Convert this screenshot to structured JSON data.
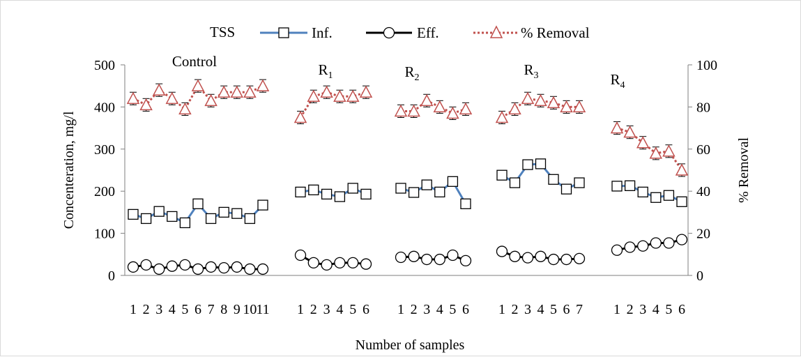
{
  "chart_data": {
    "type": "line",
    "legend": {
      "title": "TSS",
      "placement": "top",
      "entries": [
        {
          "label": "Inf.",
          "marker": "square",
          "color": "#4f81bd"
        },
        {
          "label": "Eff.",
          "marker": "circle",
          "color": "#000000"
        },
        {
          "label": "% Removal",
          "marker": "triangle",
          "color": "#c0504d",
          "dash": "dotted"
        }
      ]
    },
    "xlabel": "Number of samples",
    "ylabel": "Concenteration, mg/l",
    "y2label": "% Removal",
    "ylim": [
      0,
      500
    ],
    "y2lim": [
      0,
      100
    ],
    "yticks": [
      "0",
      "100",
      "200",
      "300",
      "400",
      "500"
    ],
    "y2ticks": [
      "0",
      "20",
      "40",
      "60",
      "80",
      "100"
    ],
    "grid": false,
    "groups": [
      {
        "name": "Control",
        "subscript": "",
        "ticks": [
          "1",
          "2",
          "3",
          "4",
          "5",
          "6",
          "7",
          "8",
          "9",
          "10",
          "11"
        ],
        "inf": [
          145,
          135,
          152,
          140,
          125,
          170,
          135,
          150,
          147,
          135,
          167
        ],
        "eff": [
          20,
          25,
          15,
          22,
          25,
          15,
          20,
          18,
          20,
          15,
          15
        ],
        "removal": [
          84,
          81,
          88,
          84,
          79,
          90,
          83,
          87,
          87,
          87,
          90
        ],
        "removal_err": 3
      },
      {
        "name": "R",
        "subscript": "1",
        "ticks": [
          "1",
          "2",
          "3",
          "4",
          "5",
          "6"
        ],
        "inf": [
          198,
          203,
          193,
          187,
          207,
          193
        ],
        "eff": [
          48,
          30,
          25,
          30,
          30,
          27
        ],
        "removal": [
          75,
          85,
          87,
          85,
          85,
          87
        ],
        "removal_err": 3
      },
      {
        "name": "R",
        "subscript": "2",
        "ticks": [
          "1",
          "2",
          "3",
          "4",
          "5",
          "6"
        ],
        "inf": [
          207,
          197,
          215,
          198,
          223,
          170
        ],
        "eff": [
          43,
          45,
          38,
          38,
          48,
          35
        ],
        "removal": [
          78,
          78,
          83,
          80,
          77,
          79
        ],
        "removal_err": 3
      },
      {
        "name": "R",
        "subscript": "3",
        "ticks": [
          "1",
          "2",
          "3",
          "4",
          "5",
          "6",
          "7"
        ],
        "inf": [
          238,
          220,
          263,
          265,
          228,
          205,
          220
        ],
        "eff": [
          57,
          45,
          42,
          45,
          38,
          38,
          40
        ],
        "removal": [
          75,
          79,
          84,
          83,
          82,
          80,
          80
        ],
        "removal_err": 3
      },
      {
        "name": "R",
        "subscript": "4",
        "ticks": [
          "1",
          "2",
          "3",
          "4",
          "5",
          "6"
        ],
        "inf": [
          212,
          213,
          198,
          185,
          190,
          175
        ],
        "eff": [
          60,
          67,
          70,
          77,
          77,
          85
        ],
        "removal": [
          70,
          68,
          63,
          58,
          59,
          50
        ],
        "removal_err": 3
      }
    ],
    "colors": {
      "inf": "#4f81bd",
      "eff": "#000000",
      "removal": "#c0504d"
    }
  }
}
